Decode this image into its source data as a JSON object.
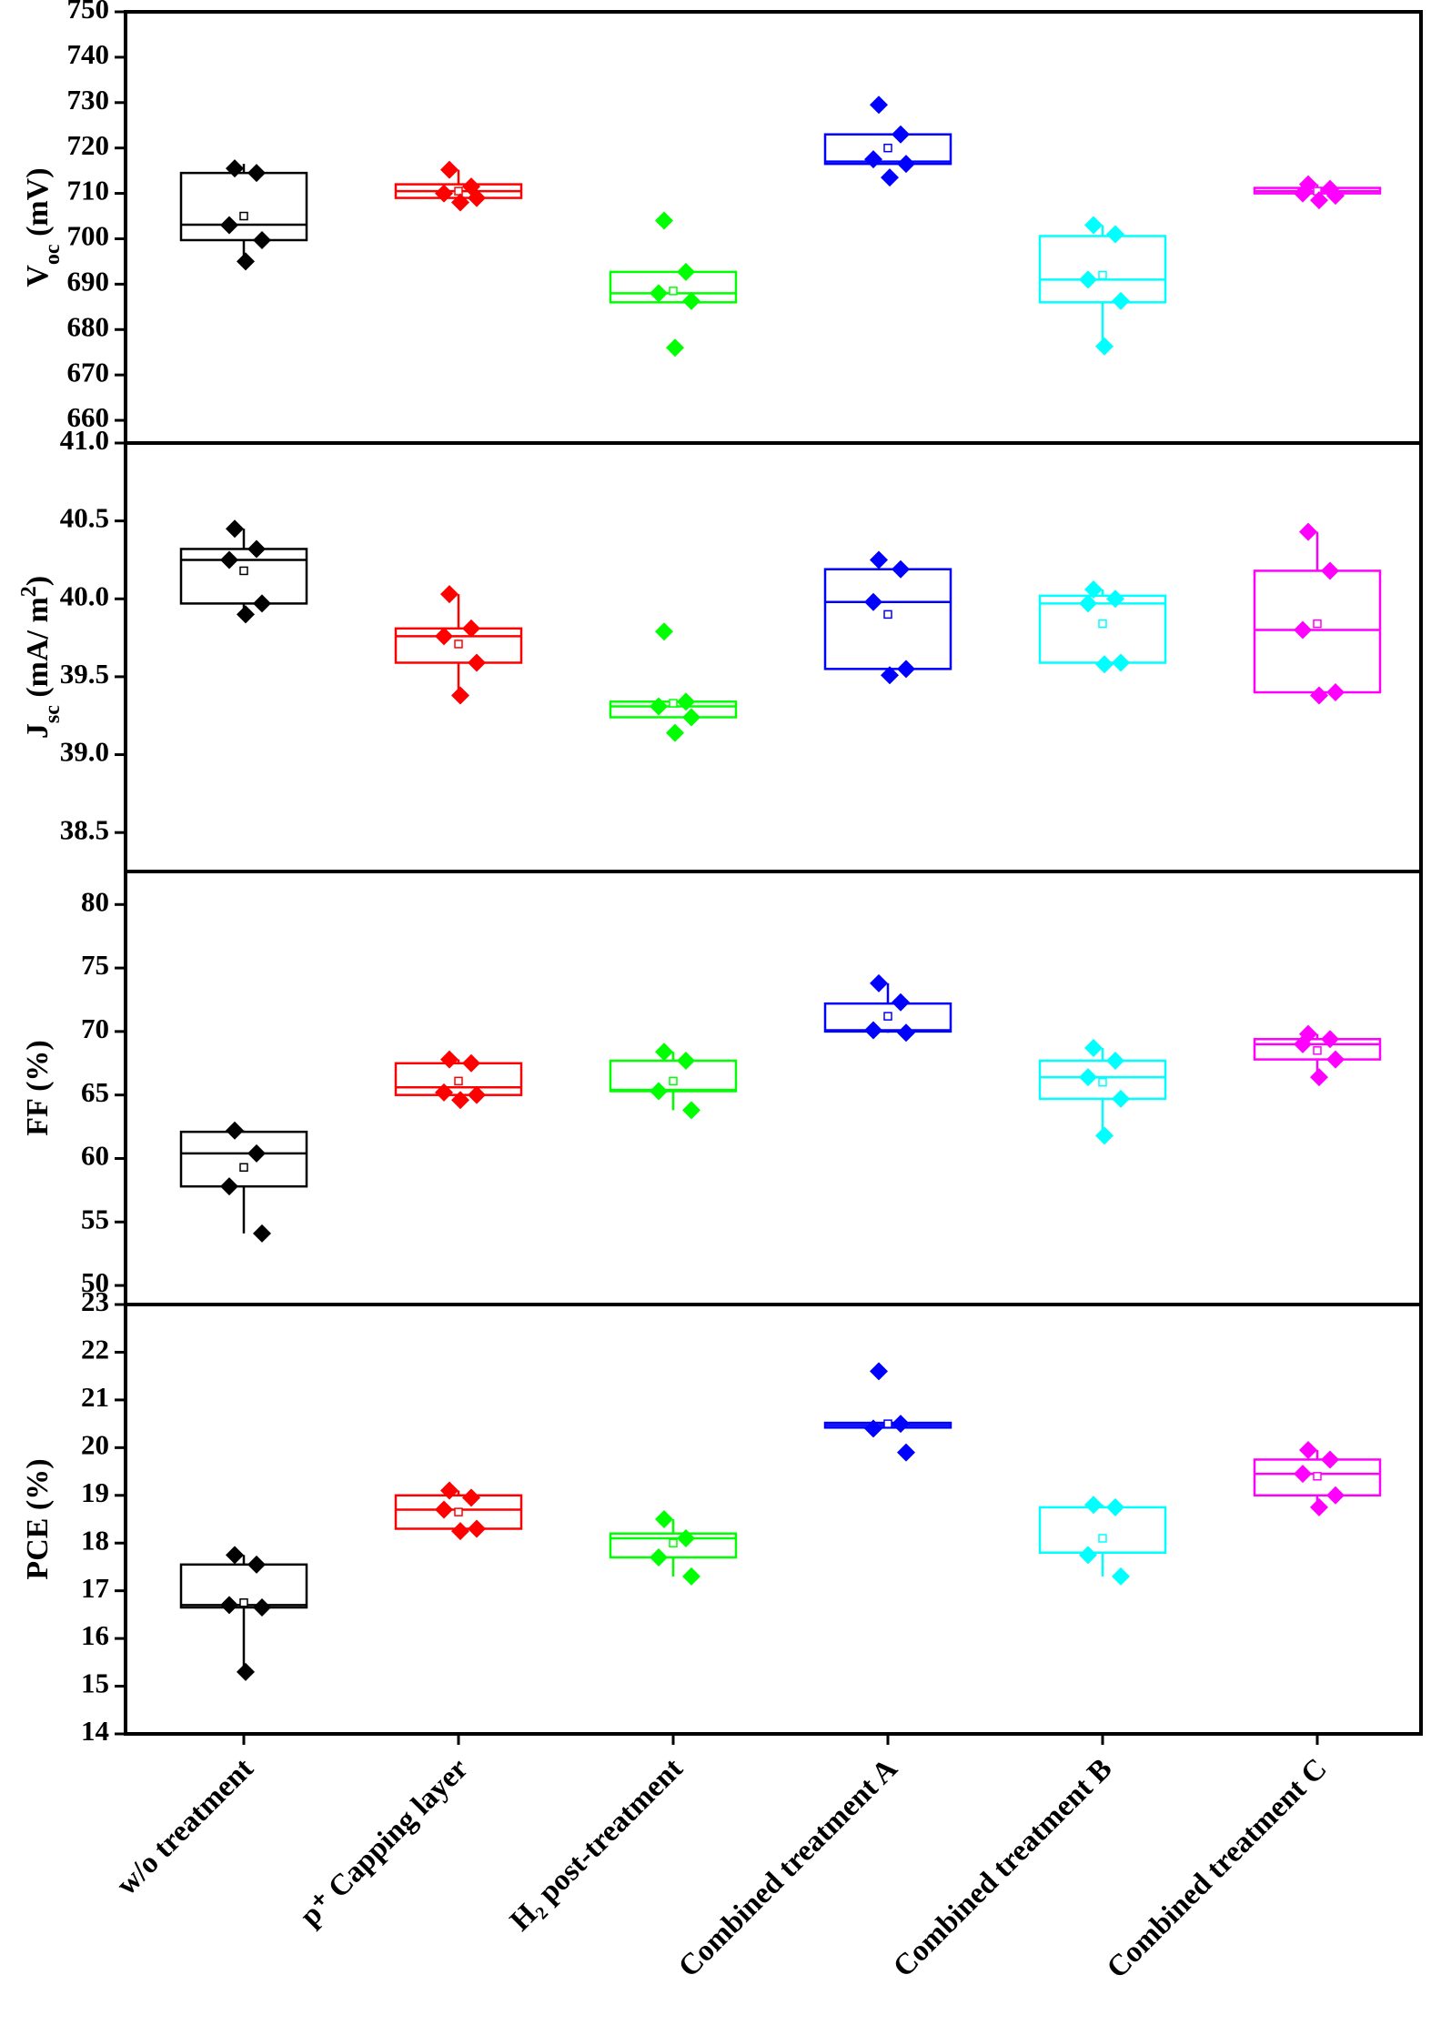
{
  "chart_data": [
    {
      "type": "box",
      "ylabel": [
        {
          "text": "V"
        },
        {
          "text": "oc",
          "shift": "sub"
        },
        {
          "text": " (mV)"
        }
      ],
      "ylim": [
        655,
        750
      ],
      "yticks": [
        660,
        670,
        680,
        690,
        700,
        710,
        720,
        730,
        740,
        750
      ],
      "boxes": [
        {
          "color": "#000000",
          "q1": 699.7,
          "median": 703.1,
          "q3": 714.5,
          "mean": 705,
          "whisker": [
            694.6,
            716.5
          ],
          "points": [
            715.5,
            714.5,
            703,
            699.7,
            695
          ]
        },
        {
          "color": "#ff0000",
          "q1": 709,
          "median": 710.5,
          "q3": 712,
          "mean": 710.5,
          "whisker": [
            708,
            715.2
          ],
          "points": [
            715.2,
            711.5,
            710,
            709,
            708
          ]
        },
        {
          "color": "#00ff00",
          "q1": 686,
          "median": 688,
          "q3": 692.7,
          "mean": 688.5,
          "whisker": [
            686,
            692.7
          ],
          "points": [
            704,
            692.7,
            688,
            686.3,
            676
          ]
        },
        {
          "color": "#0000ff",
          "q1": 716.5,
          "median": 717,
          "q3": 723,
          "mean": 720,
          "whisker": [
            716.5,
            723
          ],
          "points": [
            729.5,
            723,
            717.5,
            716.5,
            713.5
          ]
        },
        {
          "color": "#00ffff",
          "q1": 686,
          "median": 691,
          "q3": 700.6,
          "mean": 692,
          "whisker": [
            676.3,
            703
          ],
          "points": [
            703,
            701,
            691,
            686.3,
            676.3
          ]
        },
        {
          "color": "#ff00ff",
          "q1": 710,
          "median": 710.5,
          "q3": 711.2,
          "mean": 710.5,
          "whisker": [
            708.5,
            712
          ],
          "points": [
            712,
            711,
            710,
            709.5,
            708.5
          ]
        }
      ]
    },
    {
      "type": "box",
      "ylabel": [
        {
          "text": "J"
        },
        {
          "text": "sc",
          "shift": "sub"
        },
        {
          "text": " (mA/ m"
        },
        {
          "text": "2",
          "shift": "super"
        },
        {
          "text": ")"
        }
      ],
      "ylim": [
        38.25,
        41.0
      ],
      "yticks": [
        38.5,
        {
          "value": 39,
          "label": "39.0"
        },
        39.5,
        {
          "value": 40,
          "label": "40.0"
        },
        40.5,
        {
          "value": 41,
          "label": "41.0"
        }
      ],
      "boxes": [
        {
          "color": "#000000",
          "q1": 39.97,
          "median": 40.25,
          "q3": 40.32,
          "mean": 40.18,
          "whisker": [
            39.9,
            40.45
          ],
          "points": [
            40.45,
            40.32,
            40.25,
            39.97,
            39.9
          ]
        },
        {
          "color": "#ff0000",
          "q1": 39.59,
          "median": 39.76,
          "q3": 39.81,
          "mean": 39.71,
          "whisker": [
            39.38,
            40.03
          ],
          "points": [
            40.03,
            39.81,
            39.76,
            39.59,
            39.38
          ]
        },
        {
          "color": "#00ff00",
          "q1": 39.24,
          "median": 39.31,
          "q3": 39.34,
          "mean": 39.33,
          "whisker": [
            39.24,
            39.34
          ],
          "points": [
            39.79,
            39.34,
            39.31,
            39.24,
            39.14
          ]
        },
        {
          "color": "#0000ff",
          "q1": 39.55,
          "median": 39.98,
          "q3": 40.19,
          "mean": 39.9,
          "whisker": [
            39.55,
            40.19
          ],
          "points": [
            40.25,
            40.19,
            39.98,
            39.55,
            39.51
          ]
        },
        {
          "color": "#00ffff",
          "q1": 39.59,
          "median": 39.97,
          "q3": 40.02,
          "mean": 39.84,
          "whisker": [
            39.58,
            40.06
          ],
          "points": [
            40.06,
            40.0,
            39.97,
            39.59,
            39.58
          ]
        },
        {
          "color": "#ff00ff",
          "q1": 39.4,
          "median": 39.8,
          "q3": 40.18,
          "mean": 39.84,
          "whisker": [
            39.38,
            40.43
          ],
          "points": [
            40.43,
            40.18,
            39.8,
            39.4,
            39.38
          ]
        }
      ]
    },
    {
      "type": "box",
      "ylabel": [
        {
          "text": "FF (%)"
        }
      ],
      "ylim": [
        48.5,
        82.6
      ],
      "yticks": [
        50,
        55,
        60,
        65,
        70,
        75,
        80
      ],
      "boxes": [
        {
          "color": "#000000",
          "q1": 57.8,
          "median": 60.4,
          "q3": 62.1,
          "mean": 59.3,
          "whisker": [
            54.1,
            62.2
          ],
          "points": [
            62.2,
            60.4,
            57.8,
            54.1
          ]
        },
        {
          "color": "#ff0000",
          "q1": 65,
          "median": 65.6,
          "q3": 67.5,
          "mean": 66.1,
          "whisker": [
            64.6,
            67.8
          ],
          "points": [
            67.8,
            67.5,
            65.2,
            65,
            64.6
          ]
        },
        {
          "color": "#00ff00",
          "q1": 65.3,
          "median": 65.4,
          "q3": 67.7,
          "mean": 66.1,
          "whisker": [
            63.8,
            68.4
          ],
          "points": [
            68.4,
            67.7,
            65.3,
            63.8
          ]
        },
        {
          "color": "#0000ff",
          "q1": 70,
          "median": 70.1,
          "q3": 72.2,
          "mean": 71.2,
          "whisker": [
            69.9,
            73.8
          ],
          "points": [
            73.8,
            72.3,
            70.1,
            69.9
          ]
        },
        {
          "color": "#00ffff",
          "q1": 64.7,
          "median": 66.4,
          "q3": 67.7,
          "mean": 66,
          "whisker": [
            61.8,
            68.7
          ],
          "points": [
            68.7,
            67.7,
            66.4,
            64.7,
            61.8
          ]
        },
        {
          "color": "#ff00ff",
          "q1": 67.8,
          "median": 69,
          "q3": 69.4,
          "mean": 68.5,
          "whisker": [
            66.4,
            69.8
          ],
          "points": [
            69.8,
            69.4,
            69,
            67.8,
            66.4
          ]
        }
      ]
    },
    {
      "type": "box",
      "ylabel": [
        {
          "text": "PCE (%)"
        }
      ],
      "ylim": [
        14,
        23
      ],
      "yticks": [
        14,
        15,
        16,
        17,
        18,
        19,
        20,
        21,
        22,
        23
      ],
      "categories": [
        "w/o treatment",
        "p⁺ Capping layer",
        "H₂ post-treatment",
        "Combined treatment A",
        "Combined treatment B",
        "Combined treatment C"
      ],
      "boxes": [
        {
          "color": "#000000",
          "q1": 16.65,
          "median": 16.7,
          "q3": 17.55,
          "mean": 16.75,
          "whisker": [
            15.3,
            17.75
          ],
          "points": [
            17.75,
            17.55,
            16.7,
            16.65,
            15.3
          ]
        },
        {
          "color": "#ff0000",
          "q1": 18.3,
          "median": 18.7,
          "q3": 19,
          "mean": 18.65,
          "whisker": [
            18.25,
            19.1
          ],
          "points": [
            19.1,
            18.95,
            18.7,
            18.3,
            18.25
          ]
        },
        {
          "color": "#00ff00",
          "q1": 17.7,
          "median": 18.1,
          "q3": 18.2,
          "mean": 18,
          "whisker": [
            17.3,
            18.5
          ],
          "points": [
            18.5,
            18.1,
            17.7,
            17.3
          ]
        },
        {
          "color": "#0000ff",
          "q1": 20.42,
          "median": 20.47,
          "q3": 20.52,
          "mean": 20.5,
          "whisker": [
            20.42,
            20.52
          ],
          "points": [
            21.6,
            20.5,
            20.4,
            19.9
          ]
        },
        {
          "color": "#00ffff",
          "q1": 17.8,
          "median": 17.8,
          "q3": 18.75,
          "mean": 18.1,
          "whisker": [
            17.3,
            18.8
          ],
          "points": [
            18.8,
            18.75,
            17.75,
            17.3
          ]
        },
        {
          "color": "#ff00ff",
          "q1": 19,
          "median": 19.45,
          "q3": 19.75,
          "mean": 19.4,
          "whisker": [
            18.75,
            19.95
          ],
          "points": [
            19.95,
            19.75,
            19.45,
            19,
            18.75
          ]
        }
      ]
    }
  ]
}
